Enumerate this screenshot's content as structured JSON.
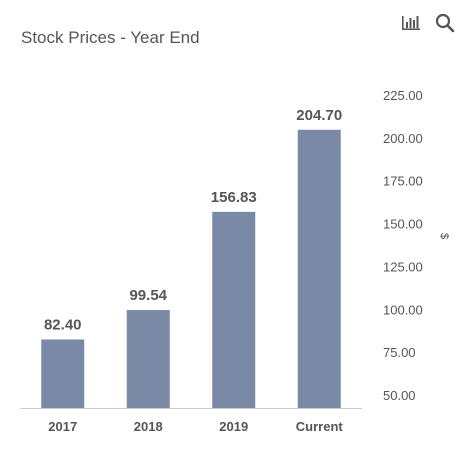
{
  "title": "Stock Prices - Year End",
  "toolbar": {
    "chart_icon": "bar-chart-icon",
    "search_icon": "search-icon"
  },
  "colors": {
    "bar": "#7a8aa6",
    "axis_text": "#555555",
    "label_text": "#555555",
    "baseline": "#cccccc",
    "icon": "#555555"
  },
  "chart_data": {
    "type": "bar",
    "title": "Stock Prices - Year End",
    "categories": [
      "2017",
      "2018",
      "2019",
      "Current"
    ],
    "values": [
      82.4,
      99.54,
      156.83,
      204.7
    ],
    "value_labels": [
      "82.40",
      "99.54",
      "156.83",
      "204.70"
    ],
    "ylabel": "$",
    "ylim": [
      50,
      225
    ],
    "yticks": [
      "50.00",
      "75.00",
      "100.00",
      "125.00",
      "150.00",
      "175.00",
      "200.00",
      "225.00"
    ],
    "y_axis_position": "right",
    "grid": false,
    "legend": "none"
  }
}
